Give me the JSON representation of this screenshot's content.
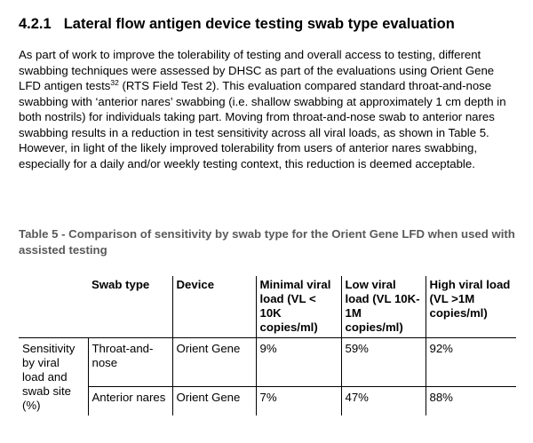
{
  "section": {
    "number": "4.2.1",
    "title": "Lateral flow antigen device testing swab type evaluation"
  },
  "paragraph": {
    "before_sup": "As part of work to improve the tolerability of testing and overall access to testing, different swabbing techniques were assessed by DHSC as part of the evaluations using Orient Gene LFD antigen tests",
    "sup": "32",
    "after_sup": " (RTS Field Test 2). This evaluation compared standard throat-and-nose swabbing with ‘anterior nares’ swabbing (i.e. shallow swabbing at approximately 1 cm depth in both nostrils) for individuals taking part. Moving from throat-and-nose swab to anterior nares swabbing results in a reduction in test sensitivity across all viral loads, as shown in Table 5.  However, in light of the likely improved tolerability from users of anterior nares swabbing, especially for a daily and/or weekly testing context, this reduction is deemed acceptable."
  },
  "table": {
    "caption": "Table 5 - Comparison of sensitivity by swab type for the Orient Gene LFD when used with assisted testing",
    "headers": {
      "blank": "",
      "swab_type": "Swab type",
      "device": "Device",
      "minimal": "Minimal viral load (VL < 10K copies/ml)",
      "low": "Low viral load (VL 10K-1M copies/ml)",
      "high": "High viral load (VL >1M copies/ml)"
    },
    "row_header": "Sensitivity by viral load and swab site (%)",
    "rows": [
      {
        "swab_type": "Throat-and-nose",
        "device": "Orient Gene",
        "minimal": "9%",
        "low": "59%",
        "high": "92%"
      },
      {
        "swab_type": "Anterior nares",
        "device": "Orient Gene",
        "minimal": "7%",
        "low": "47%",
        "high": "88%"
      }
    ]
  }
}
